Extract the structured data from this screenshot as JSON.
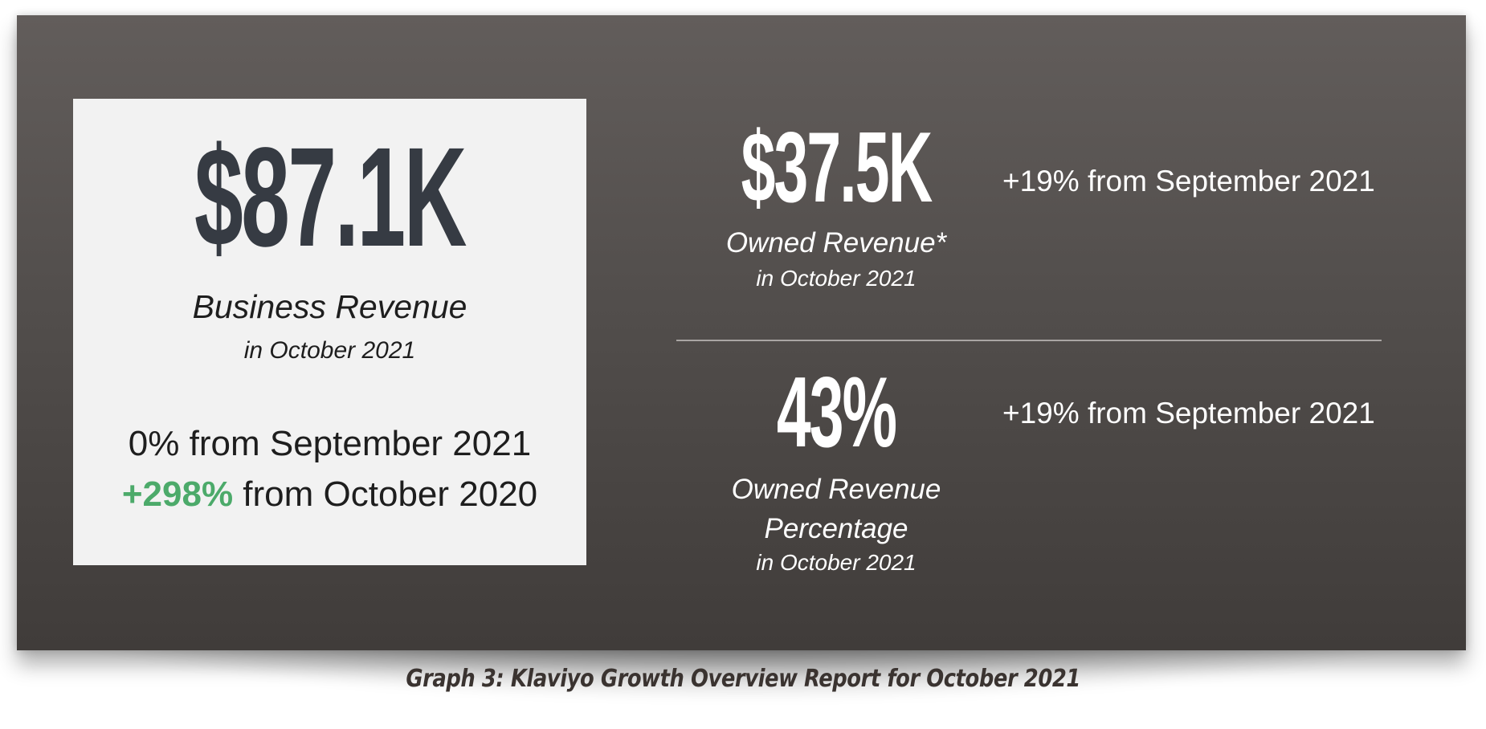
{
  "colors": {
    "panel_top": "#625d5b",
    "panel_bottom": "#403c3a",
    "light_box": "#f2f2f2",
    "big_number_dark": "#363b43",
    "positive_green": "#4caa6a",
    "caption_text": "#3a3330"
  },
  "business_revenue": {
    "value": "$87.1K",
    "label": "Business Revenue",
    "period": "in October 2021",
    "change_month": "0% from September 2021",
    "change_year_value": "+298%",
    "change_year_text": " from October 2020"
  },
  "owned_revenue": {
    "value": "$37.5K",
    "label": "Owned Revenue*",
    "period": "in October 2021",
    "change": "+19% from September 2021"
  },
  "owned_revenue_percentage": {
    "value": "43%",
    "label_line1": "Owned Revenue",
    "label_line2": "Percentage",
    "period": "in October 2021",
    "change": "+19% from September 2021"
  },
  "caption": "Graph 3: Klaviyo Growth Overview Report for October 2021"
}
